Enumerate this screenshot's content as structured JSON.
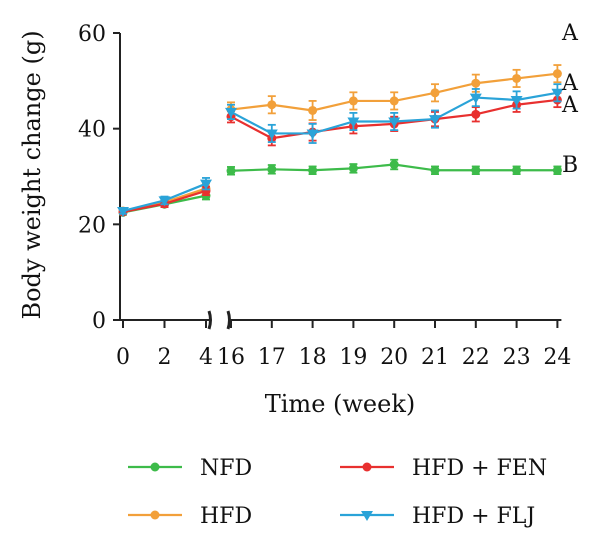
{
  "chart_data": {
    "type": "line",
    "xlabel": "Time (week)",
    "ylabel": "Body weight change (g)",
    "ylim": [
      0,
      60
    ],
    "y_ticks": [
      0,
      20,
      40,
      60
    ],
    "x_ticks": [
      0,
      2,
      4,
      16,
      17,
      18,
      19,
      20,
      21,
      22,
      23,
      24
    ],
    "x_break": "between 4 and 16",
    "legend": {
      "placement": "bottom",
      "columns": 2
    },
    "group_labels": [
      {
        "series": "HFD",
        "text": "A"
      },
      {
        "series": "HFD + FLJ",
        "text": "A"
      },
      {
        "series": "HFD + FEN",
        "text": "A"
      },
      {
        "series": "NFD",
        "text": "B"
      }
    ],
    "series": [
      {
        "name": "NFD",
        "color": "#3dbb4a",
        "marker": "circle",
        "segments": [
          {
            "x": [
              0,
              2,
              4
            ],
            "y": [
              22.5,
              24.2,
              26.0
            ],
            "err": [
              0.5,
              0.6,
              0.8
            ]
          },
          {
            "x": [
              16,
              17,
              18,
              19,
              20,
              21,
              22,
              23,
              24
            ],
            "y": [
              31.2,
              31.5,
              31.3,
              31.7,
              32.5,
              31.3,
              31.3,
              31.3,
              31.3
            ],
            "err": [
              0.8,
              0.9,
              0.8,
              0.9,
              1.0,
              0.8,
              0.8,
              0.8,
              0.8
            ]
          }
        ]
      },
      {
        "name": "HFD",
        "color": "#f2a03a",
        "marker": "circle",
        "segments": [
          {
            "x": [
              0,
              2,
              4
            ],
            "y": [
              22.8,
              24.6,
              27.5
            ],
            "err": [
              0.6,
              0.8,
              1.0
            ]
          },
          {
            "x": [
              16,
              17,
              18,
              19,
              20,
              21,
              22,
              23,
              24
            ],
            "y": [
              44.0,
              45.0,
              43.8,
              45.8,
              45.8,
              47.5,
              49.5,
              50.5,
              51.5
            ],
            "err": [
              1.5,
              1.8,
              2.0,
              1.8,
              1.8,
              1.8,
              1.8,
              1.8,
              1.8
            ]
          }
        ]
      },
      {
        "name": "HFD + FEN",
        "color": "#e8302f",
        "marker": "circle",
        "segments": [
          {
            "x": [
              0,
              2,
              4
            ],
            "y": [
              22.6,
              24.3,
              27.0
            ],
            "err": [
              0.5,
              0.7,
              0.9
            ]
          },
          {
            "x": [
              16,
              17,
              18,
              19,
              20,
              21,
              22,
              23,
              24
            ],
            "y": [
              42.5,
              38.0,
              39.3,
              40.5,
              41.0,
              42.0,
              43.0,
              45.0,
              46.0
            ],
            "err": [
              1.2,
              1.5,
              1.8,
              1.5,
              1.5,
              1.5,
              1.5,
              1.5,
              1.5
            ]
          }
        ]
      },
      {
        "name": "HFD + FLJ",
        "color": "#2aa3d8",
        "marker": "triangle-down",
        "segments": [
          {
            "x": [
              0,
              2,
              4
            ],
            "y": [
              22.8,
              25.0,
              28.5
            ],
            "err": [
              0.6,
              0.8,
              1.2
            ]
          },
          {
            "x": [
              16,
              17,
              18,
              19,
              20,
              21,
              22,
              23,
              24
            ],
            "y": [
              43.5,
              39.0,
              39.0,
              41.5,
              41.5,
              42.0,
              46.5,
              46.0,
              47.5
            ],
            "err": [
              1.5,
              1.8,
              2.0,
              1.8,
              1.8,
              1.8,
              1.8,
              1.8,
              1.8
            ]
          }
        ]
      }
    ]
  }
}
